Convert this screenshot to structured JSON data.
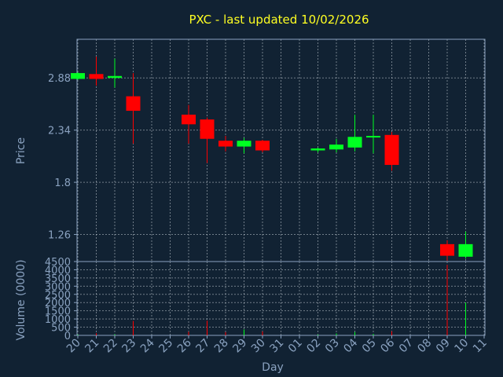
{
  "colors": {
    "background": "#112233",
    "axis": "#8aa2c0",
    "grid": "#c0c8d0",
    "up": "#00ff22",
    "down": "#ff0000",
    "title": "#ffff22"
  },
  "chart_data": {
    "type": "candlestick",
    "title": "PXC - last updated 10/02/2026",
    "xlabel": "Day",
    "price": {
      "ylabel": "Price",
      "ylim": [
        0.98,
        3.28
      ],
      "yticks": [
        "2.88",
        "2.34",
        "1.8",
        "1.26"
      ],
      "ytick_values": [
        2.88,
        2.34,
        1.8,
        1.26
      ]
    },
    "volume": {
      "ylabel": "Volume (0000)",
      "ylim": [
        0,
        4500
      ],
      "yticks": [
        "4500",
        "4000",
        "3500",
        "3000",
        "2500",
        "2000",
        "1500",
        "1000",
        "500",
        "0"
      ],
      "ytick_values": [
        4500,
        4000,
        3500,
        3000,
        2500,
        2000,
        1500,
        1000,
        500,
        0
      ]
    },
    "x_labels": [
      "20",
      "21",
      "22",
      "23",
      "24",
      "25",
      "26",
      "27",
      "28",
      "29",
      "30",
      "31",
      "01",
      "02",
      "03",
      "04",
      "05",
      "06",
      "07",
      "08",
      "09",
      "10",
      "11"
    ],
    "candles": [
      {
        "x": "20",
        "open": 2.87,
        "high": 2.94,
        "low": 2.86,
        "close": 2.93,
        "volume": 40
      },
      {
        "x": "21",
        "open": 2.92,
        "high": 3.1,
        "low": 2.8,
        "close": 2.87,
        "volume": 130
      },
      {
        "x": "22",
        "open": 2.88,
        "high": 3.08,
        "low": 2.78,
        "close": 2.9,
        "volume": 60
      },
      {
        "x": "23",
        "open": 2.69,
        "high": 2.93,
        "low": 2.2,
        "close": 2.54,
        "volume": 880
      },
      {
        "x": "26",
        "open": 2.5,
        "high": 2.6,
        "low": 2.2,
        "close": 2.4,
        "volume": 220
      },
      {
        "x": "27",
        "open": 2.45,
        "high": 2.47,
        "low": 2.0,
        "close": 2.25,
        "volume": 900
      },
      {
        "x": "28",
        "open": 2.23,
        "high": 2.28,
        "low": 2.12,
        "close": 2.17,
        "volume": 200
      },
      {
        "x": "29",
        "open": 2.17,
        "high": 2.26,
        "low": 2.1,
        "close": 2.23,
        "volume": 360
      },
      {
        "x": "30",
        "open": 2.23,
        "high": 2.24,
        "low": 2.11,
        "close": 2.13,
        "volume": 240
      },
      {
        "x": "02",
        "open": 2.13,
        "high": 2.16,
        "low": 2.11,
        "close": 2.15,
        "volume": 50
      },
      {
        "x": "03",
        "open": 2.14,
        "high": 2.25,
        "low": 2.11,
        "close": 2.19,
        "volume": 120
      },
      {
        "x": "04",
        "open": 2.16,
        "high": 2.5,
        "low": 2.12,
        "close": 2.27,
        "volume": 200
      },
      {
        "x": "05",
        "open": 2.27,
        "high": 2.5,
        "low": 2.1,
        "close": 2.28,
        "volume": 90
      },
      {
        "x": "06",
        "open": 2.29,
        "high": 2.32,
        "low": 1.92,
        "close": 1.98,
        "volume": 250
      },
      {
        "x": "09",
        "open": 1.16,
        "high": 1.2,
        "low": 0.99,
        "close": 1.04,
        "volume": 4300
      },
      {
        "x": "10",
        "open": 1.03,
        "high": 1.29,
        "low": 1.01,
        "close": 1.16,
        "volume": 2000
      }
    ],
    "grid": true
  }
}
